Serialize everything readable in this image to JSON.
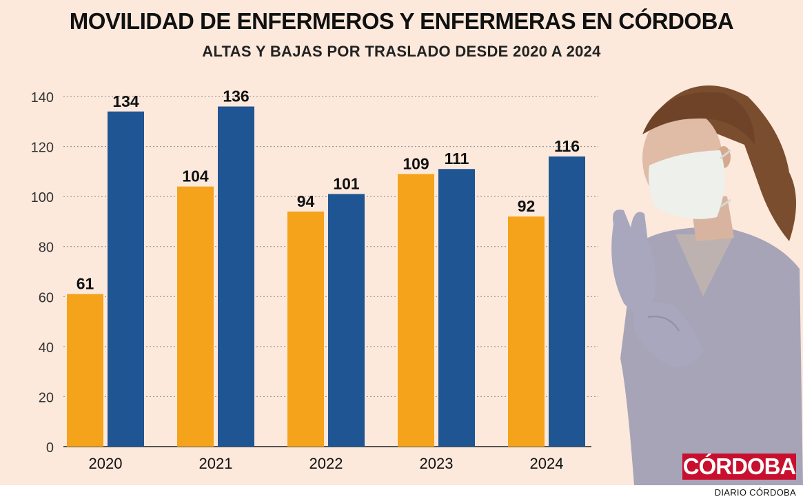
{
  "colors": {
    "background": "#fce9dc",
    "altas": "#f5a31a",
    "bajas": "#1e5592",
    "grid": "#8a8a8a",
    "text": "#111111",
    "logo": "#c8102e"
  },
  "branding": {
    "logo_text": "CÓRDOBA",
    "credit": "DIARIO CÓRDOBA"
  },
  "chart_data": {
    "type": "bar",
    "title": "MOVILIDAD DE ENFERMEROS Y ENFERMERAS EN CÓRDOBA",
    "subtitle": "ALTAS Y BAJAS POR TRASLADO DESDE 2020 A 2024",
    "categories": [
      "2020",
      "2021",
      "2022",
      "2023",
      "2024"
    ],
    "series": [
      {
        "name": "Altas",
        "color": "#f5a31a",
        "values": [
          61,
          104,
          94,
          109,
          92
        ]
      },
      {
        "name": "Bajas",
        "color": "#1e5592",
        "values": [
          134,
          136,
          101,
          111,
          116
        ]
      }
    ],
    "yticks": [
      0,
      20,
      40,
      60,
      80,
      100,
      120,
      140
    ],
    "ylim": [
      0,
      140
    ],
    "grid": true,
    "legend": "none",
    "xlabel": "",
    "ylabel": ""
  }
}
